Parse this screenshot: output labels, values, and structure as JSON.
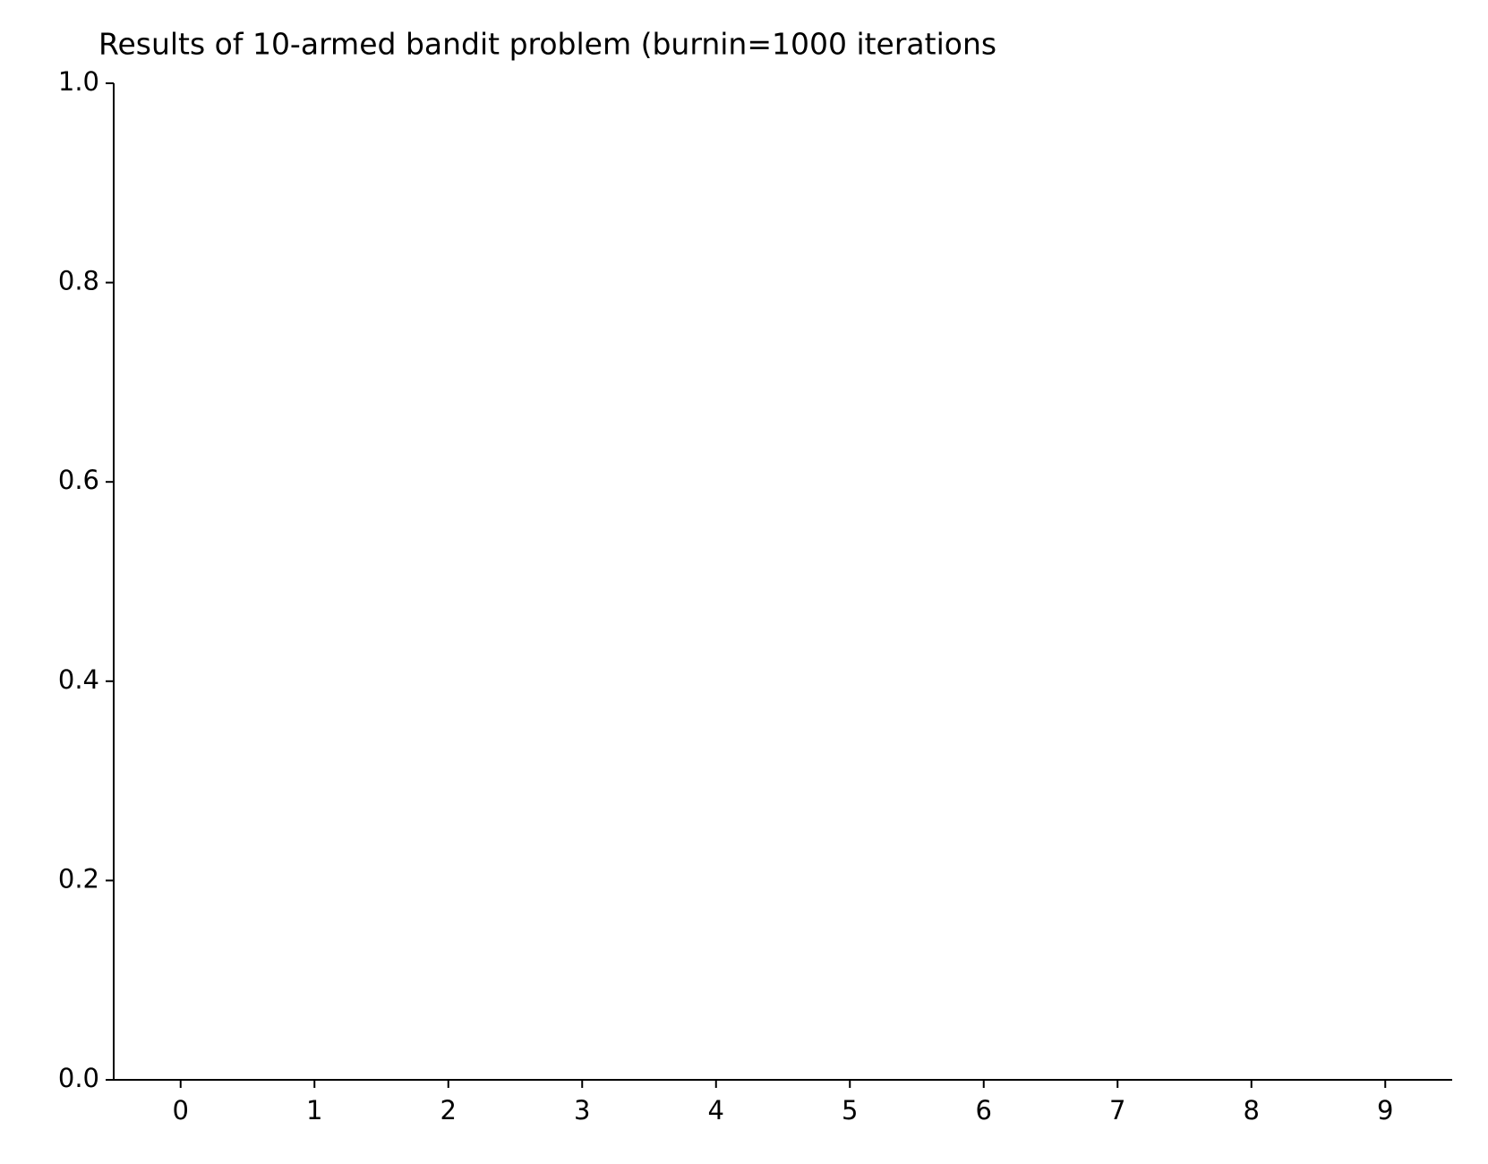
{
  "chart_data": {
    "type": "bar",
    "title": "Results of 10-armed bandit problem (burnin=1000 iterations",
    "x": [
      0,
      1,
      2,
      3,
      4,
      5,
      6,
      7,
      8,
      9
    ],
    "values": [
      0,
      0,
      0,
      0,
      0,
      0,
      0,
      0,
      0,
      0
    ],
    "color": "#1f77b4",
    "xlim": [
      -0.5,
      9.5
    ],
    "xticks": [
      0,
      1,
      2,
      3,
      4,
      5,
      6,
      7,
      8,
      9
    ],
    "ylim": [
      0,
      1
    ],
    "yticks": [
      {
        "value": 0,
        "label": "0.0"
      },
      0.2,
      0.4,
      0.6,
      0.8,
      {
        "value": 1,
        "label": "1.0"
      }
    ],
    "grid": false
  }
}
